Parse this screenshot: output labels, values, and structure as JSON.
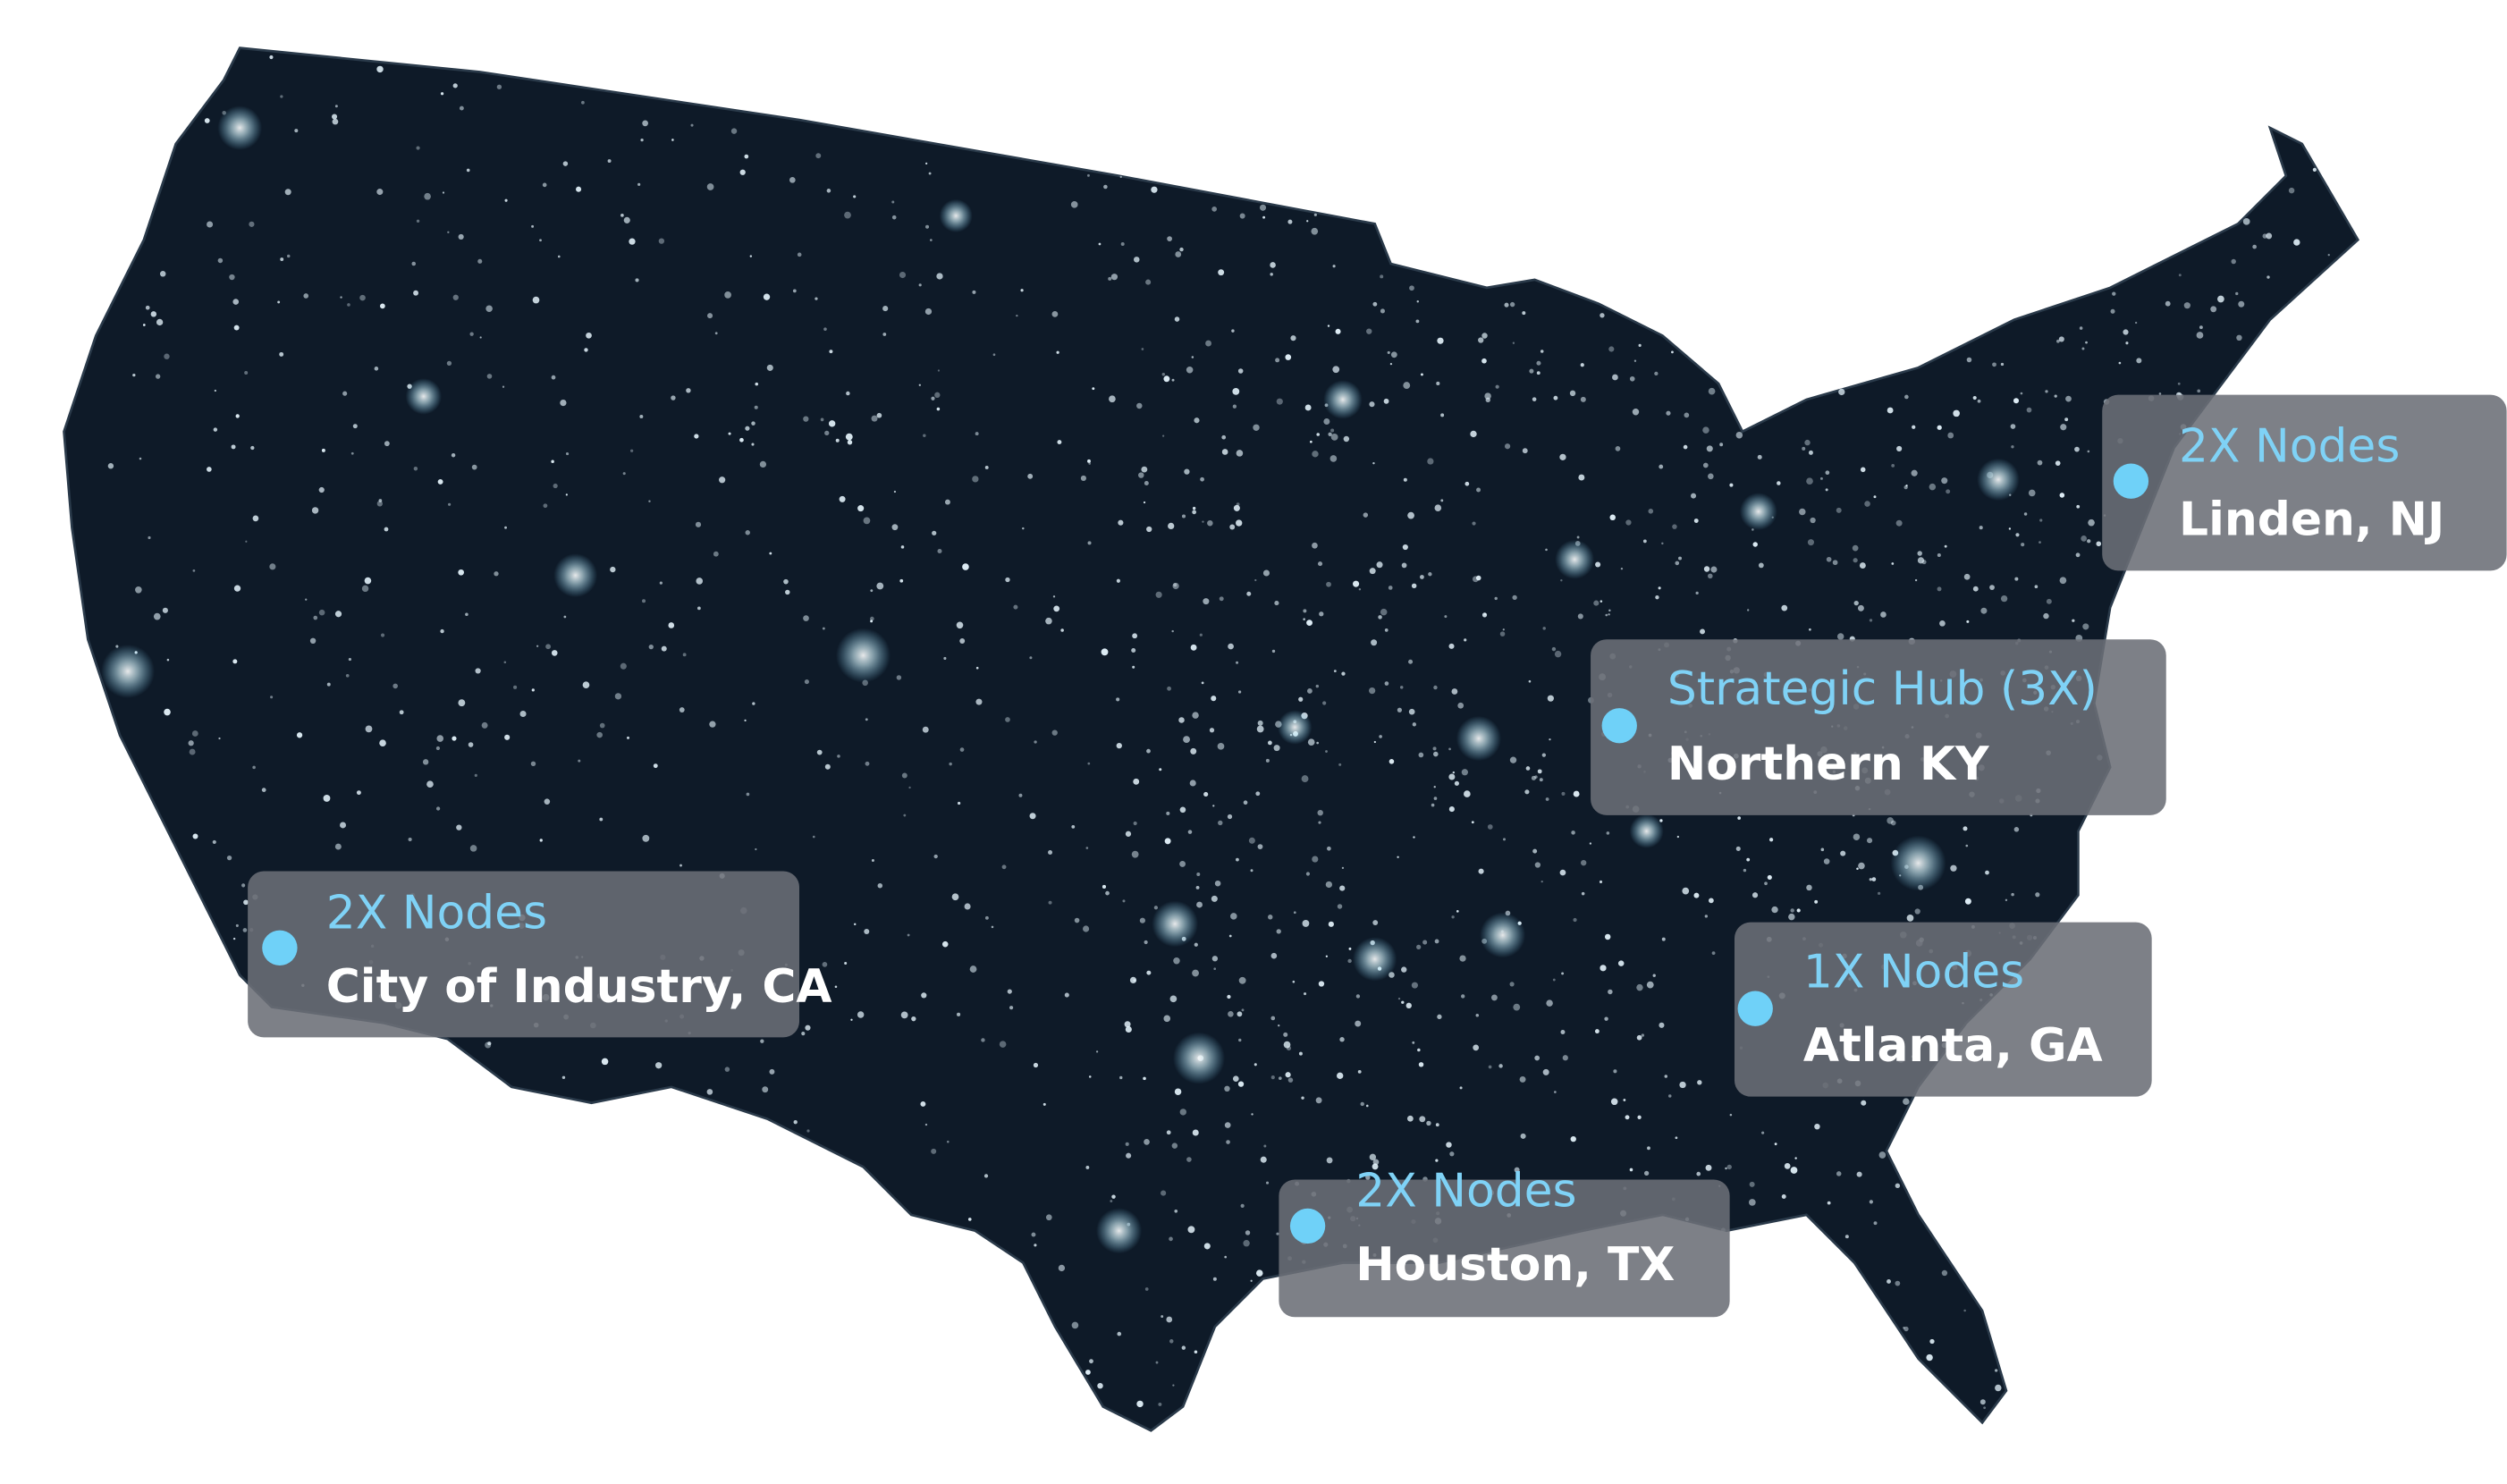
{
  "markers": [
    {
      "count": "2X Nodes",
      "location": "City of Industry, CA"
    },
    {
      "count": "2X Nodes",
      "location": "Houston, TX"
    },
    {
      "count": "1X Nodes",
      "location": "Atlanta, GA"
    },
    {
      "count": "Strategic Hub (3X)",
      "location": "Northern KY"
    },
    {
      "count": "2X Nodes",
      "location": "Linden, NJ"
    }
  ]
}
